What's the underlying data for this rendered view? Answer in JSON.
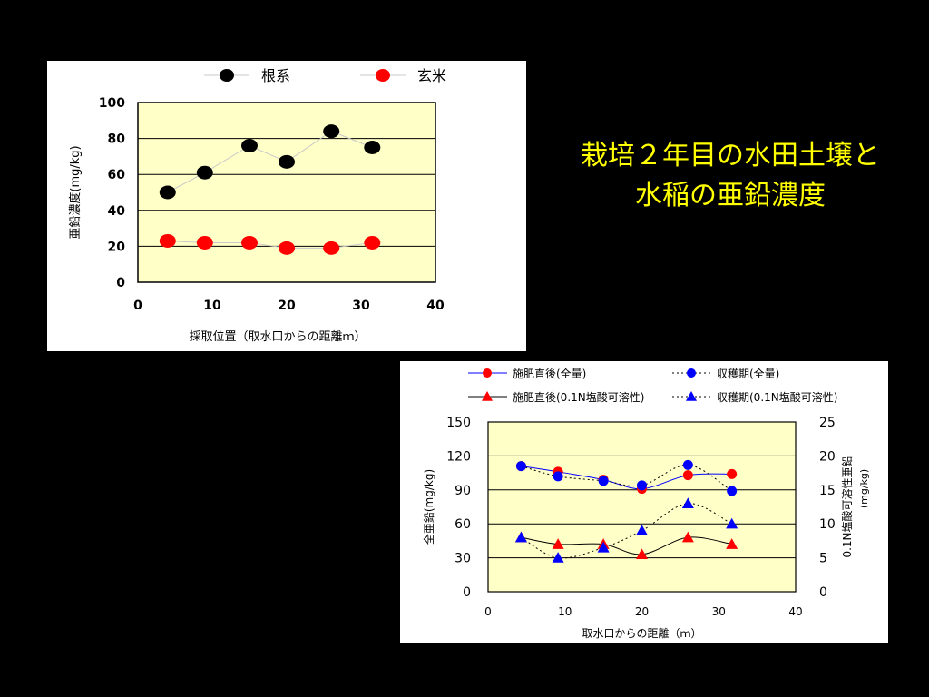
{
  "slide": {
    "title_line1": "栽培２年目の水田土壌と",
    "title_line2": "水稲の亜鉛濃度",
    "title_color": "#FFFF00",
    "background": "#000000"
  },
  "chart_data": [
    {
      "type": "scatter",
      "title": "",
      "xlabel": "採取位置（取水口からの距離ｍ）",
      "ylabel": "亜鉛濃度(mg/kg)",
      "xlim": [
        0,
        40
      ],
      "ylim": [
        0,
        100
      ],
      "xticks": [
        0,
        10,
        20,
        30,
        40
      ],
      "yticks": [
        0,
        20,
        40,
        60,
        80,
        100
      ],
      "grid": true,
      "plot_background": "#FFFFC8",
      "legend_position": "top",
      "series": [
        {
          "name": "根系",
          "color": "#000000",
          "marker": "circle",
          "x": [
            4,
            9,
            15,
            20,
            26,
            31.5
          ],
          "y": [
            50,
            61,
            76,
            67,
            84,
            75
          ]
        },
        {
          "name": "玄米",
          "color": "#FF0000",
          "marker": "circle",
          "x": [
            4,
            9,
            15,
            20,
            26,
            31.5
          ],
          "y": [
            23,
            22,
            22,
            19,
            19,
            22
          ]
        }
      ]
    },
    {
      "type": "line",
      "title": "",
      "xlabel": "取水口からの距離（ｍ）",
      "ylabel": "全亜鉛(mg/kg)",
      "y2label_line1": "0.1N塩酸可溶性亜鉛",
      "y2label_line2": "(mg/kg)",
      "xlim": [
        0,
        40
      ],
      "ylim": [
        0,
        150
      ],
      "y2lim": [
        0,
        25
      ],
      "xticks": [
        0,
        10,
        20,
        30,
        40
      ],
      "yticks": [
        0,
        30,
        60,
        90,
        120,
        150
      ],
      "y2ticks": [
        0,
        5,
        10,
        15,
        20,
        25
      ],
      "grid": true,
      "plot_background": "#FFFFC8",
      "legend_position": "top",
      "series": [
        {
          "name": "施肥直後(全量)",
          "color": "#FF0000",
          "line_color": "#0000FF",
          "dash": "solid",
          "marker": "circle",
          "axis": "left",
          "x": [
            4.3,
            9.1,
            15,
            20,
            26,
            31.7
          ],
          "y": [
            111,
            106,
            99,
            91,
            103,
            104
          ]
        },
        {
          "name": "収穫期(全量)",
          "color": "#0000FF",
          "line_color": "#000000",
          "dash": "dotted",
          "marker": "circle",
          "axis": "left",
          "x": [
            4.3,
            9.1,
            15,
            20,
            26,
            31.7
          ],
          "y": [
            111,
            102,
            98,
            94,
            112,
            89
          ]
        },
        {
          "name": "施肥直後(0.1N塩酸可溶性)",
          "color": "#FF0000",
          "line_color": "#000000",
          "dash": "solid",
          "marker": "triangle",
          "axis": "right",
          "x": [
            4.3,
            9.1,
            15,
            20,
            26,
            31.7
          ],
          "y": [
            8,
            7,
            7,
            5.5,
            8,
            7
          ]
        },
        {
          "name": "収穫期(0.1N塩酸可溶性)",
          "color": "#0000FF",
          "line_color": "#000000",
          "dash": "dotted",
          "marker": "triangle",
          "axis": "right",
          "x": [
            4.3,
            9.1,
            15,
            20,
            26,
            31.7
          ],
          "y": [
            8,
            5,
            6.5,
            9,
            13,
            10
          ]
        }
      ]
    }
  ]
}
